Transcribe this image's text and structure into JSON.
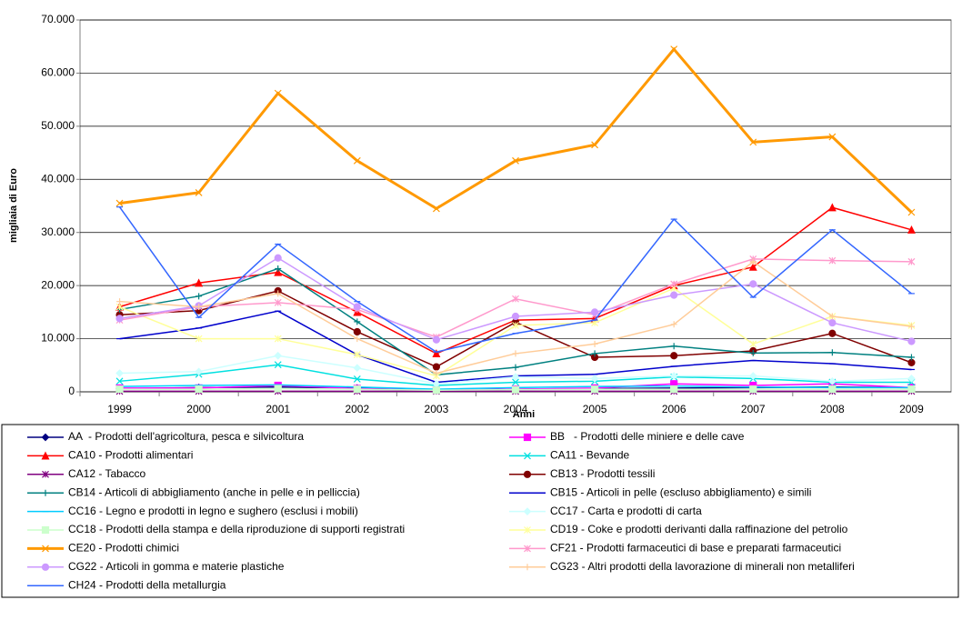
{
  "chart_data": {
    "type": "line",
    "x_label": "Anni",
    "y_label": "migliaia di Euro",
    "categories": [
      "1999",
      "2000",
      "2001",
      "2002",
      "2003",
      "2004",
      "2005",
      "2006",
      "2007",
      "2008",
      "2009"
    ],
    "ylim": [
      0,
      70000
    ],
    "yticks": [
      0,
      {
        "value": 10000,
        "label": "10.000"
      },
      {
        "value": 20000,
        "label": "20.000"
      },
      {
        "value": 30000,
        "label": "30.000"
      },
      {
        "value": 40000,
        "label": "40.000"
      },
      {
        "value": 50000,
        "label": "50.000"
      },
      {
        "value": 60000,
        "label": "60.000"
      },
      {
        "value": 70000,
        "label": "70.000"
      }
    ],
    "grid": true,
    "legend": "bottom",
    "series": [
      {
        "name": "AA  - Prodotti dell'agricoltura, pesca e silvicoltura",
        "color": "#000080",
        "marker": "diamond",
        "values": [
          600,
          800,
          900,
          700,
          300,
          500,
          600,
          700,
          800,
          900,
          800
        ]
      },
      {
        "name": "BB   - Prodotti delle miniere e delle cave",
        "color": "#FF00FF",
        "marker": "square",
        "values": [
          700,
          700,
          1200,
          600,
          300,
          500,
          700,
          1500,
          1200,
          1500,
          800
        ]
      },
      {
        "name": "CA10 - Prodotti alimentari",
        "color": "#FF0000",
        "marker": "triangle",
        "values": [
          16000,
          20500,
          22500,
          15000,
          7200,
          13500,
          13800,
          20000,
          23500,
          34700,
          30500
        ]
      },
      {
        "name": "CA11 - Bevande",
        "color": "#00E0E0",
        "marker": "x",
        "values": [
          2000,
          3300,
          5100,
          2400,
          1200,
          1800,
          2000,
          2800,
          2500,
          1800,
          1800
        ]
      },
      {
        "name": "CA12 - Tabacco",
        "color": "#800080",
        "marker": "asterisk",
        "values": [
          100,
          100,
          100,
          100,
          100,
          100,
          100,
          100,
          100,
          100,
          100
        ]
      },
      {
        "name": "CB13 - Prodotti tessili",
        "color": "#800000",
        "marker": "circle",
        "values": [
          14500,
          15300,
          19000,
          11300,
          4700,
          13100,
          6500,
          6800,
          7700,
          11000,
          5500
        ]
      },
      {
        "name": "CB14 - Articoli di abbigliamento (anche in pelle e in pelliccia)",
        "color": "#008080",
        "marker": "plus",
        "values": [
          15500,
          18000,
          23200,
          13200,
          3200,
          4600,
          7200,
          8600,
          7300,
          7400,
          6500
        ]
      },
      {
        "name": "CB15 - Articoli in pelle (escluso abbigliamento) e simili",
        "color": "#0000CC",
        "marker": "dash",
        "values": [
          10000,
          12000,
          15200,
          7000,
          1800,
          3000,
          3300,
          4800,
          5900,
          5300,
          4200
        ]
      },
      {
        "name": "CC16 - Legno e prodotti in legno e sughero (esclusi i mobili)",
        "color": "#00CCFF",
        "marker": "dash",
        "values": [
          1000,
          1200,
          1300,
          900,
          500,
          800,
          1000,
          1100,
          900,
          800,
          800
        ]
      },
      {
        "name": "CC17 - Carta e prodotti di carta",
        "color": "#CCFFFF",
        "marker": "diamond",
        "values": [
          3500,
          3800,
          6800,
          4500,
          1500,
          2800,
          2500,
          3000,
          3000,
          2000,
          2500
        ]
      },
      {
        "name": "CC18 - Prodotti della stampa e della riproduzione di supporti registrati",
        "color": "#CCFFCC",
        "marker": "square",
        "values": [
          500,
          500,
          600,
          500,
          300,
          400,
          500,
          500,
          500,
          500,
          500
        ]
      },
      {
        "name": "CD19 - Coke e prodotti derivanti dalla raffinazione del petrolio",
        "color": "#FFFF99",
        "marker": "asterisk",
        "values": [
          16000,
          10000,
          10000,
          7000,
          3000,
          12500,
          13000,
          19500,
          9000,
          14200,
          12500
        ]
      },
      {
        "name": "CE20 - Prodotti chimici",
        "color": "#FF9900",
        "marker": "x",
        "width": 3,
        "values": [
          35500,
          37500,
          56200,
          43500,
          34500,
          43500,
          46500,
          64500,
          47000,
          48000,
          33800
        ]
      },
      {
        "name": "CF21 - Prodotti farmaceutici di base e preparati farmaceutici",
        "color": "#FF99CC",
        "marker": "asterisk",
        "values": [
          13500,
          16000,
          16800,
          15500,
          10300,
          17500,
          14500,
          20300,
          25000,
          24700,
          24500
        ]
      },
      {
        "name": "CG22 - Articoli in gomma e materie plastiche",
        "color": "#CC99FF",
        "marker": "circle",
        "values": [
          13800,
          16200,
          25200,
          16000,
          9800,
          14200,
          15000,
          18200,
          20300,
          13000,
          9500
        ]
      },
      {
        "name": "CG23 - Altri prodotti della lavorazione di minerali non metalliferi",
        "color": "#FFCC99",
        "marker": "plus",
        "values": [
          17000,
          16000,
          18500,
          10000,
          3500,
          7200,
          9000,
          12700,
          24500,
          14200,
          12300
        ]
      },
      {
        "name": "CH24 - Prodotti della metallurgia",
        "color": "#3366FF",
        "marker": "dash",
        "values": [
          34800,
          14000,
          27800,
          17000,
          7500,
          11000,
          13500,
          32500,
          17800,
          30500,
          18500
        ]
      }
    ]
  }
}
